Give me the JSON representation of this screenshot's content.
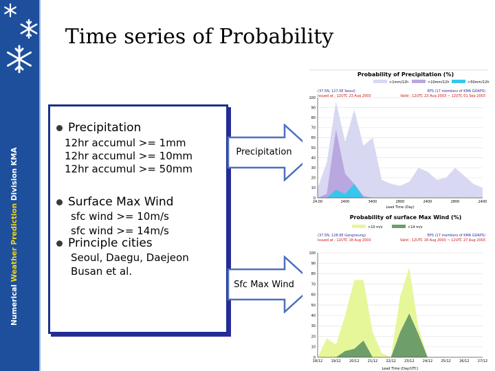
{
  "slide": {
    "title": "Time series of Probability",
    "side_label_prefix": "Numerical ",
    "side_label_highlight": "Weather Prediction",
    "side_label_suffix": " Division  KMA"
  },
  "panel": {
    "precip": {
      "label": "Precipitation",
      "lines": [
        "12hr accumul >= 1mm",
        "12hr accumul >= 10mm",
        "12hr accumul >= 50mm"
      ]
    },
    "wind": {
      "label": "Surface Max Wind",
      "lines": [
        "sfc wind  >=  10m/s",
        "sfc wind  >=  14m/s"
      ]
    },
    "cities": {
      "label": "Principle cities",
      "lines": [
        "Seoul, Daegu, Daejeon",
        "Busan et al."
      ]
    }
  },
  "arrows": {
    "top_label": "Precipitation",
    "bottom_label": "Sfc Max Wind"
  },
  "colors": {
    "sidebar": "#1d4f9c",
    "panel_border": "#1a2f8f",
    "arrow_fill": "#ffffff",
    "arrow_stroke": "#4a6fbf"
  },
  "chart_data": [
    {
      "type": "area",
      "title": "Probability of Precipitation (%)",
      "legend": [
        ">1mm/12h",
        ">10mm/12h",
        ">50mm/12h"
      ],
      "header_left": "(37.5N, 127.0E Seoul)",
      "header_right": "EPS (17 members of KMA GDAPS)",
      "issued": "Issued at : 12UTC 23 Aug 2003",
      "valid": "Valid : 12UTC 23 Aug 2003 ~ 12UTC 01 Sep 2003",
      "xlabel": "Lead Time (Day)",
      "x_ticks": [
        "24.00",
        "2400",
        "3400",
        "2800",
        "2400",
        "2800",
        "2400"
      ],
      "y_ticks": [
        "100",
        "90",
        "80",
        "70",
        "60",
        "50",
        "40",
        "30",
        "20",
        "10",
        "0"
      ],
      "ylim": [
        0,
        100
      ],
      "series": [
        {
          "name": ">1mm/12h",
          "values": [
            10,
            35,
            96,
            56,
            88,
            52,
            60,
            18,
            14,
            12,
            16,
            30,
            26,
            18,
            20,
            30,
            22,
            14,
            10
          ]
        },
        {
          "name": ">10mm/12h",
          "values": [
            0,
            4,
            68,
            24,
            14,
            2,
            0,
            0,
            0,
            0,
            0,
            0,
            0,
            0,
            0,
            0,
            0,
            0,
            0
          ]
        },
        {
          "name": ">50mm/12h",
          "values": [
            0,
            0,
            8,
            4,
            14,
            0,
            0,
            0,
            0,
            0,
            0,
            0,
            0,
            0,
            0,
            0,
            0,
            0,
            0
          ]
        }
      ],
      "colors": [
        "#d8d8f2",
        "#b9a7e0",
        "#37c7ec"
      ]
    },
    {
      "type": "area",
      "title": "Probability of surface Max Wind (%)",
      "legend": [
        ">10 m/s",
        ">14 m/s"
      ],
      "header_left": "(37.5N, 128.9E Gangneung)",
      "header_right": "EPS (17 members of KMA GDAPS)",
      "issued": "Issued at : 12UTC 18 Aug 2003",
      "valid": "Valid : 12UTC 18 Aug 2003 ~ 12UTC 27 Aug 2003",
      "xlabel": "Lead Time (Day/UTC)",
      "x_ticks": [
        "18/12",
        "19/12",
        "20/12",
        "21/12",
        "22/12",
        "23/12",
        "24/12",
        "25/12",
        "26/12",
        "27/12"
      ],
      "y_ticks": [
        "100",
        "90",
        "80",
        "70",
        "60",
        "50",
        "40",
        "30",
        "20",
        "10",
        "0"
      ],
      "ylim": [
        0,
        100
      ],
      "series": [
        {
          "name": ">10 m/s",
          "values": [
            0,
            18,
            12,
            40,
            74,
            74,
            24,
            4,
            0,
            58,
            86,
            28,
            0,
            0,
            0,
            0,
            0,
            0,
            0
          ]
        },
        {
          "name": ">14 m/s",
          "values": [
            0,
            0,
            0,
            6,
            8,
            16,
            0,
            0,
            0,
            24,
            42,
            22,
            0,
            0,
            0,
            0,
            0,
            0,
            0
          ]
        }
      ],
      "colors": [
        "#e6f79a",
        "#6e9e6a"
      ]
    }
  ]
}
